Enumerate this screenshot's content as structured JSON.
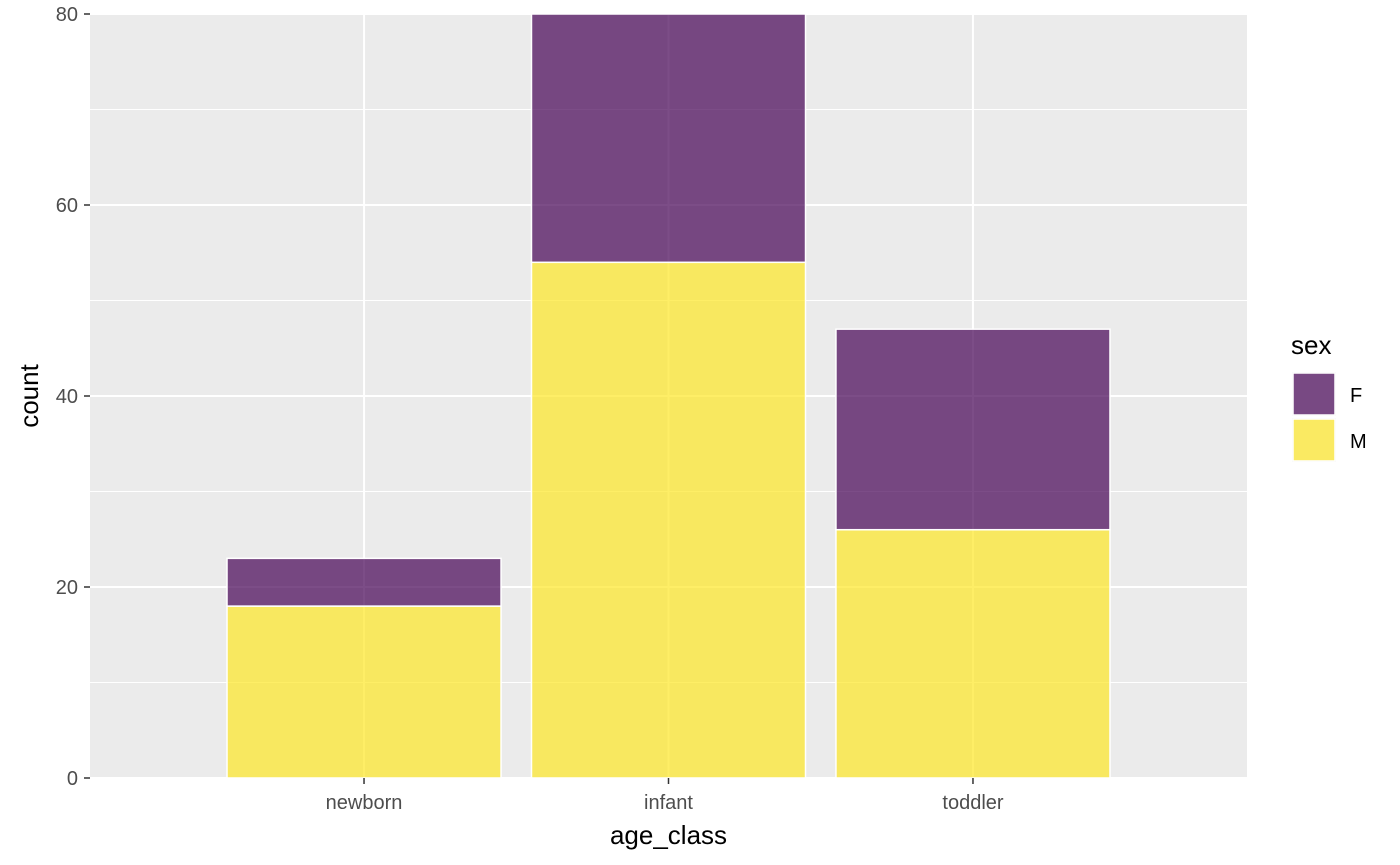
{
  "chart_data": {
    "type": "bar",
    "stacked": true,
    "title": "",
    "xlabel": "age_class",
    "ylabel": "count",
    "categories": [
      "newborn",
      "infant",
      "toddler"
    ],
    "series": [
      {
        "name": "F",
        "values": [
          5,
          26,
          21
        ],
        "color": "#440154"
      },
      {
        "name": "M",
        "values": [
          18,
          54,
          26
        ],
        "color": "#FDE725"
      }
    ],
    "ylim": [
      0,
      80
    ],
    "yticks": [
      0,
      20,
      40,
      60,
      80
    ],
    "grid": true,
    "legend": {
      "title": "sex",
      "position": "right"
    },
    "panel_background": "#EBEBEB",
    "bar_opacity": 0.7
  }
}
